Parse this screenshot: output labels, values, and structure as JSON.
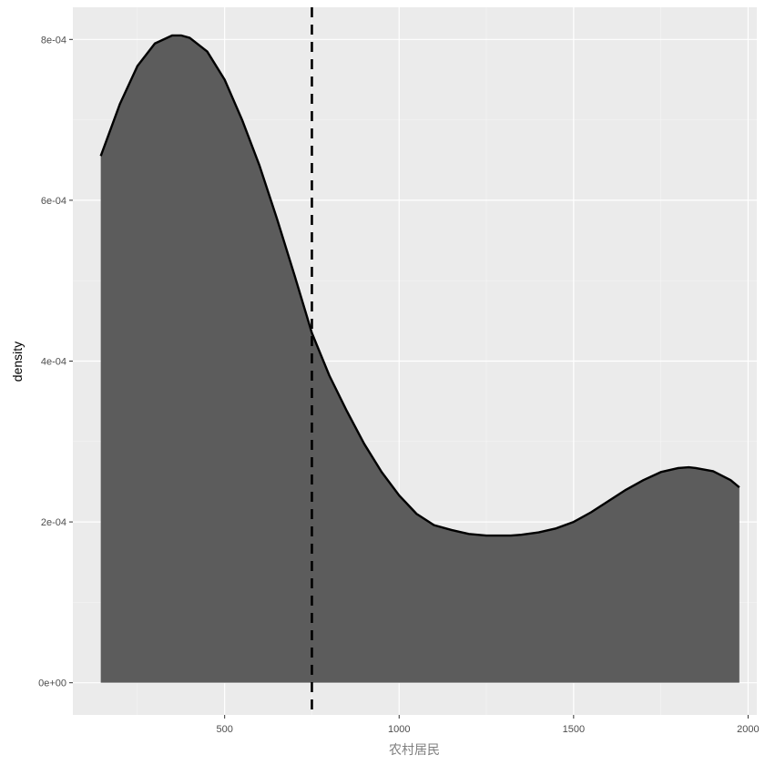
{
  "chart_data": {
    "type": "area",
    "title": "",
    "xlabel": "农村居民",
    "ylabel": "density",
    "xlim": [
      65,
      2025
    ],
    "ylim": [
      -4e-05,
      0.00084
    ],
    "x_ticks": [
      500,
      1000,
      1500,
      2000
    ],
    "x_tick_labels": [
      "500",
      "1000",
      "1500",
      "2000"
    ],
    "y_ticks": [
      0,
      0.0002,
      0.0004,
      0.0006,
      0.0008
    ],
    "y_tick_labels": [
      "0e+00",
      "2e-04",
      "4e-04",
      "6e-04",
      "8e-04"
    ],
    "grid": true,
    "vline": {
      "x": 750,
      "style": "dashed",
      "color": "#000000"
    },
    "series": [
      {
        "fill": "#5c5c5c",
        "stroke": "#000000",
        "x": [
          145,
          200,
          250,
          300,
          350,
          375,
          400,
          450,
          500,
          550,
          600,
          650,
          700,
          750,
          800,
          850,
          900,
          950,
          1000,
          1050,
          1100,
          1150,
          1200,
          1250,
          1300,
          1320,
          1350,
          1400,
          1450,
          1500,
          1550,
          1600,
          1650,
          1700,
          1750,
          1800,
          1830,
          1850,
          1900,
          1950,
          1975
        ],
        "y": [
          0.000655,
          0.00072,
          0.000767,
          0.000795,
          0.000805,
          0.000805,
          0.000802,
          0.000785,
          0.00075,
          0.0007,
          0.000643,
          0.000577,
          0.000507,
          0.000435,
          0.000382,
          0.000338,
          0.000297,
          0.000262,
          0.000233,
          0.00021,
          0.000196,
          0.00019,
          0.000185,
          0.000183,
          0.000183,
          0.000183,
          0.000184,
          0.000187,
          0.000192,
          0.0002,
          0.000212,
          0.000226,
          0.00024,
          0.000252,
          0.000262,
          0.000267,
          0.000268,
          0.000267,
          0.000263,
          0.000252,
          0.000243
        ]
      }
    ]
  }
}
